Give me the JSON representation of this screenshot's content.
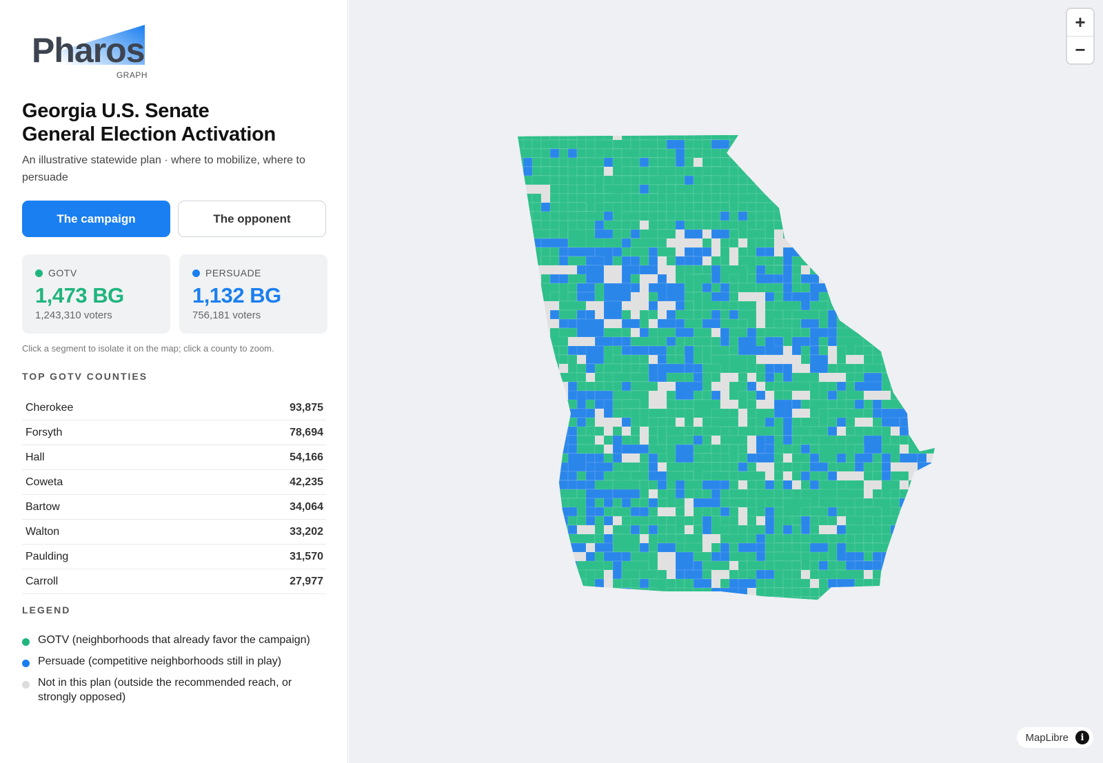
{
  "brand": {
    "name": "Pharos",
    "sub": "GRAPH"
  },
  "header": {
    "title_line1": "Georgia U.S. Senate",
    "title_line2": "General Election Activation",
    "subtitle": "An illustrative statewide plan · where to mobilize, where to persuade"
  },
  "tabs": [
    {
      "label": "The campaign",
      "active": true
    },
    {
      "label": "The opponent",
      "active": false
    }
  ],
  "segments": {
    "gotv": {
      "label": "GOTV",
      "value": "1,473 BG",
      "voters": "1,243,310 voters",
      "color": "#1fb57d"
    },
    "persuade": {
      "label": "PERSUADE",
      "value": "1,132 BG",
      "voters": "756,181 voters",
      "color": "#1a7ff0"
    }
  },
  "hint": "Click a segment to isolate it on the map; click a county to zoom.",
  "top_counties": {
    "label": "TOP GOTV COUNTIES",
    "rows": [
      {
        "name": "Cherokee",
        "value": "93,875"
      },
      {
        "name": "Forsyth",
        "value": "78,694"
      },
      {
        "name": "Hall",
        "value": "54,166"
      },
      {
        "name": "Coweta",
        "value": "42,235"
      },
      {
        "name": "Bartow",
        "value": "34,064"
      },
      {
        "name": "Walton",
        "value": "33,202"
      },
      {
        "name": "Paulding",
        "value": "31,570"
      },
      {
        "name": "Carroll",
        "value": "27,977"
      }
    ]
  },
  "legend": {
    "label": "LEGEND",
    "items": [
      {
        "text": "GOTV (neighborhoods that already favor the campaign)",
        "color": "#1fb57d"
      },
      {
        "text": "Persuade (competitive neighborhoods still in play)",
        "color": "#1a7ff0"
      },
      {
        "text": "Not in this plan (outside the recommended reach, or strongly opposed)",
        "color": "#dcdcdc"
      }
    ]
  },
  "map": {
    "zoom_in_label": "+",
    "zoom_out_label": "−",
    "attribution": "MapLibre",
    "info_label": "i",
    "colors": {
      "gotv": "#2fbf8a",
      "persuade": "#2b86ea",
      "none": "#e1e1e1",
      "background": "#eef0f3"
    }
  }
}
